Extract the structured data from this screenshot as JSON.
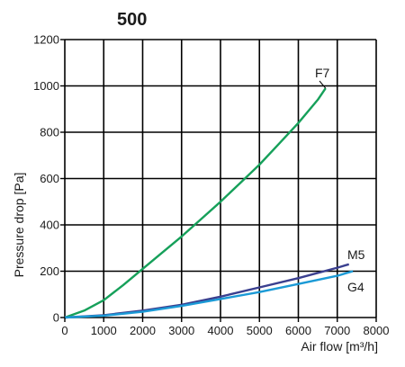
{
  "chart_data": {
    "type": "line",
    "title": "500",
    "xlabel": "Air flow [m³/h]",
    "ylabel": "Pressure drop [Pa]",
    "xlim": [
      0,
      8000
    ],
    "ylim": [
      0,
      1200
    ],
    "x_ticks": [
      0,
      1000,
      2000,
      3000,
      4000,
      5000,
      6000,
      7000,
      8000
    ],
    "y_ticks": [
      0,
      200,
      400,
      600,
      800,
      1000,
      1200
    ],
    "x_tick_labels": [
      "0",
      "1000",
      "2000",
      "3000",
      "4000",
      "5000",
      "6000",
      "7000",
      "8000"
    ],
    "y_tick_labels": [
      "0",
      "200",
      "400",
      "600",
      "800",
      "1000",
      "1200"
    ],
    "grid": true,
    "legend": "none",
    "series": [
      {
        "name": "F7",
        "color": "#16a05a",
        "x": [
          0,
          500,
          1000,
          1500,
          2000,
          2500,
          3000,
          3500,
          4000,
          4500,
          5000,
          5500,
          6000,
          6500,
          6700
        ],
        "y": [
          0,
          30,
          75,
          140,
          210,
          280,
          350,
          425,
          500,
          580,
          660,
          750,
          840,
          940,
          990
        ]
      },
      {
        "name": "M5",
        "color": "#3a3f8f",
        "x": [
          0,
          1000,
          2000,
          3000,
          4000,
          5000,
          6000,
          7000,
          7300
        ],
        "y": [
          0,
          10,
          30,
          55,
          90,
          130,
          170,
          215,
          230
        ]
      },
      {
        "name": "G4",
        "color": "#1b9ad6",
        "x": [
          0,
          1000,
          2000,
          3000,
          4000,
          5000,
          6000,
          7000,
          7400
        ],
        "y": [
          0,
          8,
          25,
          50,
          80,
          110,
          145,
          180,
          200
        ]
      }
    ]
  }
}
